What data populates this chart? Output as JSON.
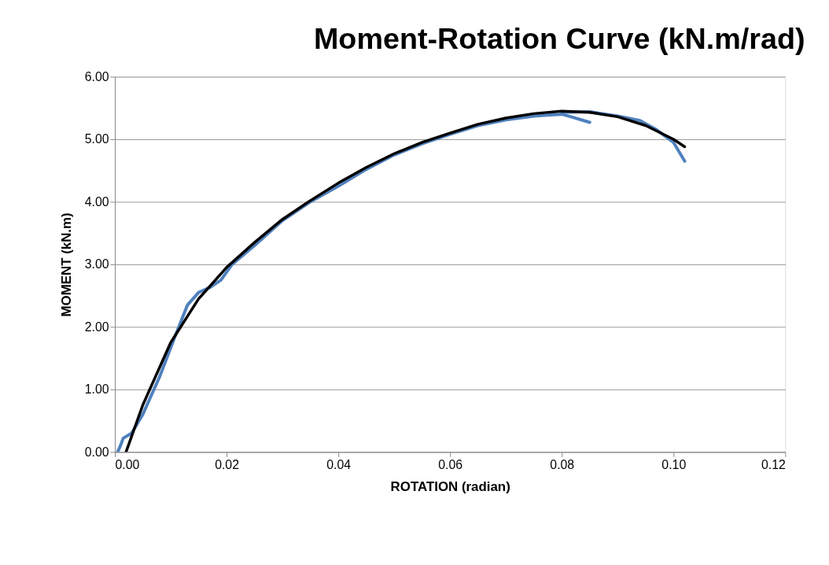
{
  "chart_data": {
    "type": "line",
    "title": "Moment-Rotation Curve (kN.m/rad)",
    "xlabel": "ROTATION (radian)",
    "ylabel": "MOMENT (kN.m)",
    "xlim": [
      0,
      0.12
    ],
    "xticks": [
      {
        "value": 0,
        "label": "0.00"
      },
      {
        "value": 0.02,
        "label": "0.02"
      },
      {
        "value": 0.04,
        "label": "0.04"
      },
      {
        "value": 0.06,
        "label": "0.06"
      },
      {
        "value": 0.08,
        "label": "0.08"
      },
      {
        "value": 0.1,
        "label": "0.10"
      },
      {
        "value": 0.12,
        "label": "0.12"
      }
    ],
    "ylim": [
      0,
      6
    ],
    "yticks": [
      {
        "value": 0,
        "label": "0.00"
      },
      {
        "value": 1,
        "label": "1.00"
      },
      {
        "value": 2,
        "label": "2.00"
      },
      {
        "value": 3,
        "label": "3.00"
      },
      {
        "value": 4,
        "label": "4.00"
      },
      {
        "value": 5,
        "label": "5.00"
      },
      {
        "value": 6,
        "label": "6.00"
      }
    ],
    "grid": "y",
    "marker": "none",
    "line_style": "solid",
    "series": [
      {
        "color": "#4f81bd",
        "x": [
          0.0005,
          0.001,
          0.0015,
          0.003,
          0.005,
          0.008,
          0.011,
          0.013,
          0.015,
          0.017,
          0.019,
          0.021,
          0.025,
          0.03,
          0.035,
          0.04,
          0.045,
          0.05,
          0.055,
          0.06,
          0.065,
          0.07,
          0.075,
          0.078,
          0.08,
          0.082,
          0.085
        ],
        "values": [
          0.0,
          0.1,
          0.22,
          0.3,
          0.6,
          1.2,
          1.9,
          2.35,
          2.55,
          2.63,
          2.75,
          3.0,
          3.3,
          3.7,
          4.0,
          4.25,
          4.52,
          4.75,
          4.93,
          5.08,
          5.22,
          5.31,
          5.37,
          5.39,
          5.4,
          5.35,
          5.27
        ]
      },
      {
        "color": "#4f81bd",
        "x": [
          0.08,
          0.085,
          0.09,
          0.094,
          0.097,
          0.1,
          0.102
        ],
        "values": [
          5.43,
          5.44,
          5.37,
          5.3,
          5.15,
          4.95,
          4.65
        ]
      },
      {
        "color": "#000000",
        "x": [
          0.002,
          0.005,
          0.01,
          0.015,
          0.02,
          0.025,
          0.03,
          0.035,
          0.04,
          0.045,
          0.05,
          0.055,
          0.06,
          0.065,
          0.07,
          0.075,
          0.08,
          0.085,
          0.09,
          0.095,
          0.1,
          0.102
        ],
        "values": [
          0.0,
          0.75,
          1.75,
          2.45,
          2.95,
          3.35,
          3.72,
          4.02,
          4.3,
          4.55,
          4.77,
          4.95,
          5.1,
          5.24,
          5.34,
          5.41,
          5.45,
          5.43,
          5.36,
          5.22,
          5.0,
          4.88
        ]
      }
    ]
  }
}
